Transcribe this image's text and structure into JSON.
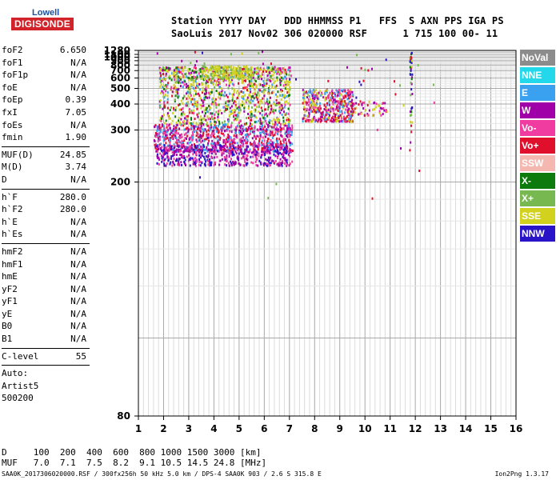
{
  "logo": {
    "top": "Lowell",
    "bottom": "DIGISONDE"
  },
  "header": {
    "line1": "Station YYYY DAY   DDD HHMMSS P1   FFS  S AXN PPS IGA PS",
    "line2": "SaoLuis 2017 Nov02 306 020000 RSF      1 715 100 00- 11"
  },
  "params": {
    "group1": [
      {
        "label": "foF2",
        "value": "6.650"
      },
      {
        "label": "foF1",
        "value": "N/A"
      },
      {
        "label": "foF1p",
        "value": "N/A"
      },
      {
        "label": "foE",
        "value": "N/A"
      },
      {
        "label": "foEp",
        "value": "0.39"
      },
      {
        "label": "fxI",
        "value": "7.05"
      },
      {
        "label": "foEs",
        "value": "N/A"
      },
      {
        "label": "fmin",
        "value": "1.90"
      }
    ],
    "group2": [
      {
        "label": "MUF(D)",
        "value": "24.85"
      },
      {
        "label": "M(D)",
        "value": "3.74"
      },
      {
        "label": "D",
        "value": "N/A"
      }
    ],
    "group3": [
      {
        "label": "h`F",
        "value": "280.0"
      },
      {
        "label": "h`F2",
        "value": "280.0"
      },
      {
        "label": "h`E",
        "value": "N/A"
      },
      {
        "label": "h`Es",
        "value": "N/A"
      }
    ],
    "group4": [
      {
        "label": "hmF2",
        "value": "N/A"
      },
      {
        "label": "hmF1",
        "value": "N/A"
      },
      {
        "label": "hmE",
        "value": "N/A"
      },
      {
        "label": "yF2",
        "value": "N/A"
      },
      {
        "label": "yF1",
        "value": "N/A"
      },
      {
        "label": "yE",
        "value": "N/A"
      },
      {
        "label": "B0",
        "value": "N/A"
      },
      {
        "label": "B1",
        "value": "N/A"
      }
    ],
    "group5": [
      {
        "label": "C-level",
        "value": "55"
      }
    ],
    "autoscale": [
      "Auto:",
      "Artist5",
      "500200"
    ]
  },
  "legend": [
    {
      "name": "NoVal",
      "color": "#8c8c8c"
    },
    {
      "name": "NNE",
      "color": "#22d8ea"
    },
    {
      "name": "E",
      "color": "#3aa0f0"
    },
    {
      "name": "W",
      "color": "#a000a8"
    },
    {
      "name": "Vo-",
      "color": "#f03ca0"
    },
    {
      "name": "Vo+",
      "color": "#e0102c"
    },
    {
      "name": "SSW",
      "color": "#f5b8b0"
    },
    {
      "name": "X-",
      "color": "#0c7a0c"
    },
    {
      "name": "X+",
      "color": "#78b850"
    },
    {
      "name": "SSE",
      "color": "#d2d21e"
    },
    {
      "name": "NNW",
      "color": "#2a14c8"
    }
  ],
  "muf_table": {
    "d_line": "D     100  200  400  600  800 1000 1500 3000 [km]",
    "muf_line": "MUF   7.0  7.1  7.5  8.2  9.1 10.5 14.5 24.8 [MHz]"
  },
  "footer": {
    "left": "SAA0K_2017306020000.RSF / 300fx256h 50 kHz 5.0 km / DPS-4 SAA0K 903 / 2.6 S 315.8 E",
    "right": "Ion2Png 1.3.17"
  },
  "chart_data": {
    "type": "scatter",
    "x_ticks": [
      "1",
      "2",
      "3",
      "4",
      "5",
      "6",
      "7",
      "8",
      "9",
      "10",
      "11",
      "12",
      "13",
      "14",
      "15",
      "16"
    ],
    "y_ticks": [
      "80",
      "200",
      "300",
      "400",
      "500",
      "600",
      "700",
      "800",
      "900",
      "1000",
      "1100",
      "1280"
    ],
    "xlim": [
      1,
      16
    ],
    "ylim": [
      80,
      1280
    ],
    "y_scale": "reciprocal",
    "grid": true,
    "legend_position": "right",
    "clusters": [
      {
        "name": "F-layer trace",
        "x_range": [
          1.6,
          7.1
        ],
        "h_range": [
          250,
          320
        ],
        "colors": [
          "#e0102c",
          "#a000a8",
          "#f03ca0",
          "#3aa0f0"
        ],
        "count": 900
      },
      {
        "name": "Lower trace",
        "x_range": [
          1.7,
          7.0
        ],
        "h_range": [
          225,
          265
        ],
        "colors": [
          "#a000a8",
          "#2a14c8",
          "#f03ca0"
        ],
        "count": 500
      },
      {
        "name": "Spread echoes",
        "x_range": [
          1.8,
          7.0
        ],
        "h_range": [
          320,
          780
        ],
        "colors": [
          "#d2d21e",
          "#d2d21e",
          "#d2d21e",
          "#78b850",
          "#0c7a0c",
          "#f03ca0",
          "#e0102c",
          "#3aa0f0",
          "#a000a8"
        ],
        "count": 1200
      },
      {
        "name": "Upper spread",
        "x_range": [
          3.5,
          5.5
        ],
        "h_range": [
          600,
          800
        ],
        "colors": [
          "#d2d21e",
          "#d2d21e",
          "#78b850"
        ],
        "count": 180
      },
      {
        "name": "Second hop",
        "x_range": [
          7.5,
          9.5
        ],
        "h_range": [
          330,
          500
        ],
        "colors": [
          "#f03ca0",
          "#e0102c",
          "#a000a8",
          "#3aa0f0",
          "#d2d21e"
        ],
        "count": 450
      },
      {
        "name": "Extended spread",
        "x_range": [
          9.4,
          10.9
        ],
        "h_range": [
          350,
          420
        ],
        "colors": [
          "#f03ca0",
          "#a000a8",
          "#d2d21e",
          "#e0102c"
        ],
        "count": 60
      },
      {
        "name": "Interference column",
        "x_range": [
          11.75,
          11.85
        ],
        "h_range": [
          230,
          1280
        ],
        "colors": [
          "#78b850",
          "#d2d21e",
          "#0c7a0c",
          "#a000a8",
          "#2a14c8",
          "#e0102c"
        ],
        "count": 40
      },
      {
        "name": "Scattered points",
        "x_range": [
          1.5,
          13.0
        ],
        "h_range": [
          180,
          1280
        ],
        "colors": [
          "#d2d21e",
          "#a000a8",
          "#e0102c",
          "#2a14c8",
          "#78b850",
          "#f03ca0"
        ],
        "count": 60
      }
    ]
  }
}
